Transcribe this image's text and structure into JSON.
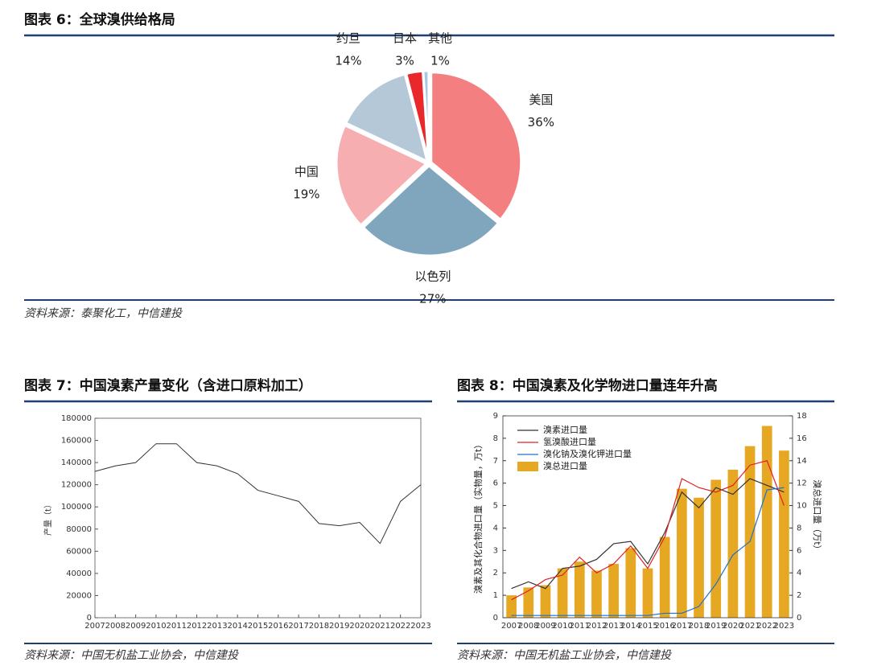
{
  "chart_data": [
    {
      "type": "pie",
      "title": "图表 6：全球溴供给格局",
      "source": "资料来源：泰聚化工，中信建投",
      "categories": [
        "美国",
        "以色列",
        "中国",
        "约旦",
        "日本",
        "其他"
      ],
      "values": [
        36,
        27,
        19,
        14,
        3,
        1
      ],
      "value_labels": [
        "36%",
        "27%",
        "19%",
        "14%",
        "3%",
        "1%"
      ],
      "colors": [
        "#f47f80",
        "#80a6be",
        "#f6aeb0",
        "#b4c8d7",
        "#e8282a",
        "#a9c6e6"
      ]
    },
    {
      "type": "line",
      "title": "图表 7：中国溴素产量变化（含进口原料加工）",
      "source": "资料来源：中国无机盐工业协会，中信建投",
      "ylabel": "产量（t）",
      "x": [
        2007,
        2008,
        2009,
        2010,
        2011,
        2012,
        2013,
        2014,
        2015,
        2016,
        2017,
        2018,
        2019,
        2020,
        2021,
        2022,
        2023
      ],
      "values": [
        132000,
        137000,
        140000,
        157000,
        157000,
        140000,
        137000,
        130000,
        115000,
        110000,
        105000,
        85000,
        83000,
        86000,
        67000,
        105000,
        120000
      ],
      "color": "#333333",
      "xlim": [
        2007,
        2023
      ],
      "xticks": [
        2007,
        2008,
        2009,
        2010,
        2011,
        2012,
        2013,
        2014,
        2015,
        2016,
        2017,
        2018,
        2019,
        2020,
        2021,
        2022,
        2023
      ],
      "ylim": [
        0,
        180000
      ],
      "yticks": [
        0,
        20000,
        40000,
        60000,
        80000,
        100000,
        120000,
        140000,
        160000,
        180000
      ]
    },
    {
      "type": "combo",
      "title": "图表 8：中国溴素及化学物进口量连年升高",
      "source": "资料来源：中国无机盐工业协会，中信建投",
      "ylabel": "溴素及其化合物进口量（实物量，万t）",
      "y2label": "溴总进口量（万t）",
      "categories": [
        "2007",
        "2008",
        "2009",
        "2010",
        "2011",
        "2012",
        "2013",
        "2014",
        "2015",
        "2016",
        "2017",
        "2018",
        "2019",
        "2020",
        "2021",
        "2022",
        "2023"
      ],
      "series": [
        {
          "name": "溴素进口量",
          "color": "#333333",
          "type": "line",
          "values": [
            1.3,
            1.6,
            1.3,
            2.2,
            2.3,
            2.6,
            3.3,
            3.4,
            2.4,
            3.8,
            5.6,
            4.9,
            5.8,
            5.5,
            6.2,
            5.9,
            5.6
          ]
        },
        {
          "name": "氢溴酸进口量",
          "color": "#e02020",
          "type": "line",
          "values": [
            0.8,
            1.2,
            1.7,
            1.9,
            2.7,
            2.0,
            2.4,
            3.2,
            2.2,
            3.6,
            6.2,
            5.8,
            5.6,
            5.9,
            6.8,
            7.0,
            5.0
          ]
        },
        {
          "name": "溴化钠及溴化钾进口量",
          "color": "#1f6fd0",
          "type": "line",
          "values": [
            0.1,
            0.1,
            0.1,
            0.1,
            0.1,
            0.1,
            0.1,
            0.1,
            0.1,
            0.2,
            0.2,
            0.5,
            1.5,
            2.8,
            3.4,
            5.7,
            5.8
          ]
        },
        {
          "name": "溴总进口量",
          "color": "#e6a823",
          "type": "bar",
          "axis": "y2",
          "values": [
            2.0,
            2.7,
            2.9,
            4.4,
            5.0,
            4.2,
            4.8,
            6.2,
            4.4,
            7.2,
            11.5,
            10.7,
            12.3,
            13.2,
            15.3,
            17.1,
            14.9
          ]
        }
      ],
      "ylim": [
        0,
        9
      ],
      "yticks": [
        0,
        1,
        2,
        3,
        4,
        5,
        6,
        7,
        8,
        9
      ],
      "y2lim": [
        0,
        18
      ],
      "y2ticks": [
        0,
        2,
        4,
        6,
        8,
        10,
        12,
        14,
        16,
        18
      ]
    }
  ]
}
